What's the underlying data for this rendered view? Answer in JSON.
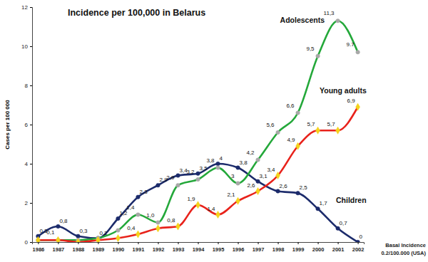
{
  "chart_data": {
    "type": "line",
    "title": "Incidence per 100,000 in Belarus",
    "y_label": "Cases per 100 000",
    "annotations": [
      "Basal Incidence",
      "0.2/100.000 (USA)"
    ],
    "x": [
      1986,
      1987,
      1988,
      1989,
      1990,
      1991,
      1992,
      1993,
      1994,
      1995,
      1996,
      1997,
      1998,
      1999,
      2000,
      2001,
      2002
    ],
    "xlim": [
      1985.7,
      2002.3
    ],
    "xticks": [
      1986,
      1987,
      1988,
      1989,
      1990,
      1991,
      1992,
      1993,
      1994,
      1995,
      1996,
      1997,
      1998,
      1999,
      2000,
      2001,
      2002
    ],
    "ylim": [
      0,
      12
    ],
    "yticks": [
      0,
      2,
      4,
      6,
      8,
      10,
      12
    ],
    "grid": false,
    "data_labels": true,
    "series": [
      {
        "name": "Children",
        "color": "#1c2b6b",
        "marker": "circle",
        "values": [
          0.3,
          0.8,
          0.3,
          0.2,
          1.2,
          2.3,
          2.9,
          3.4,
          3.5,
          4,
          3.8,
          3.1,
          2.6,
          2.5,
          1.7,
          0.7,
          0
        ],
        "value_labels": [
          "0,3",
          "0,8",
          "0,3",
          "0,2",
          "1,2",
          "2,3",
          "2,9",
          "3,4",
          "3,5",
          "4",
          "3,8",
          "3,1",
          "2,6",
          "2,5",
          "1,7",
          "0,7",
          "0"
        ]
      },
      {
        "name": "Adolescents",
        "color": "#24a83a",
        "marker": "circle",
        "values": [
          0.1,
          0.1,
          0.1,
          0.2,
          0.6,
          1.4,
          1.0,
          2.9,
          3.2,
          3.8,
          3,
          4.2,
          5.6,
          6.6,
          9.5,
          11.3,
          9.7
        ],
        "value_labels": [
          null,
          "0,1",
          null,
          null,
          null,
          "1,4",
          "1,0",
          "2,9",
          "3,2",
          "3,8",
          "3",
          "4,2",
          "5,6",
          "6,6",
          "9,5",
          "11,3",
          "9.7"
        ]
      },
      {
        "name": "Young adults",
        "color": "#e8221b",
        "marker": "diamond",
        "values": [
          0.1,
          0.1,
          0,
          0.1,
          0.2,
          0.4,
          0.7,
          0.8,
          1.9,
          1.4,
          2.1,
          2.6,
          3.4,
          4.9,
          5.7,
          5.7,
          6.9
        ],
        "value_labels": [
          null,
          null,
          null,
          null,
          null,
          "0,4",
          null,
          "0,8",
          "1,9",
          "1,4",
          "2,1",
          "2,6",
          "3,4",
          "4,9",
          "5,7",
          "5,7",
          "6,9"
        ]
      }
    ]
  }
}
